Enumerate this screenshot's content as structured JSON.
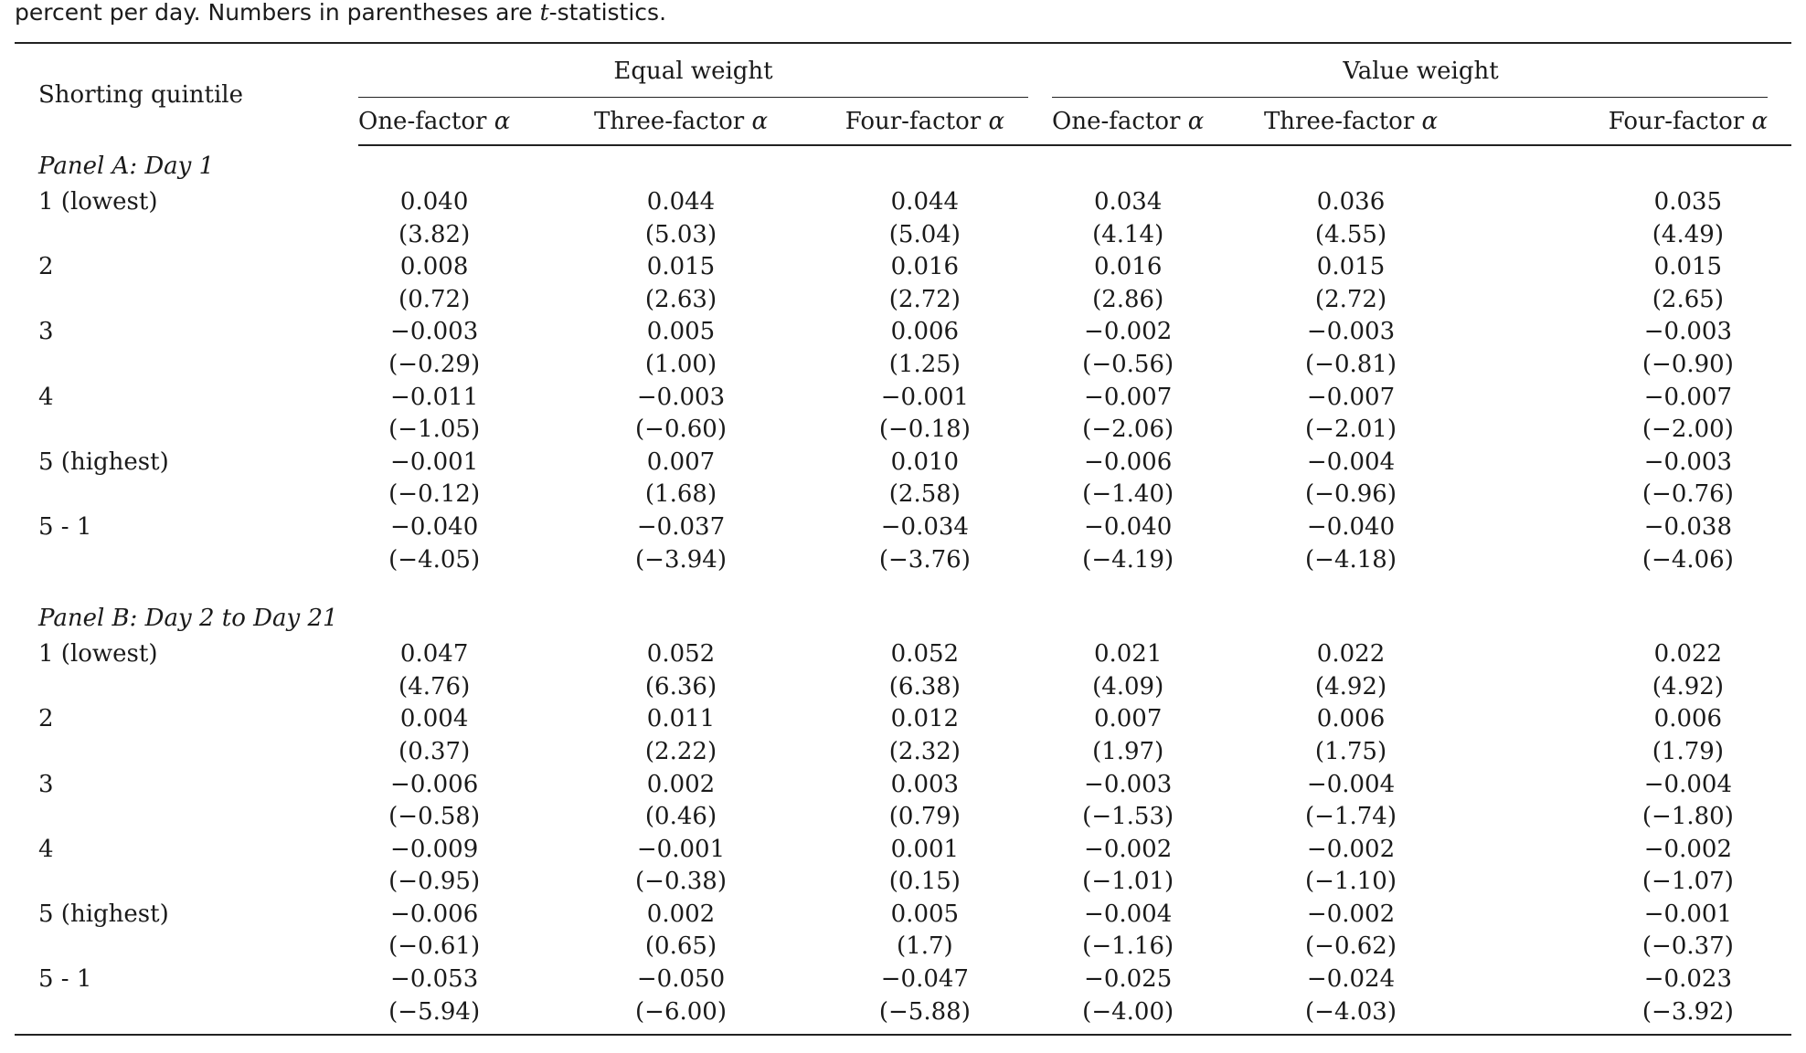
{
  "caption": {
    "text_before": "percent per day. Numbers in parentheses are ",
    "italic": "t",
    "text_after": "-statistics."
  },
  "header": {
    "row_label": "Shorting quintile",
    "groups": [
      "Equal weight",
      "Value weight"
    ],
    "columns": [
      {
        "name": "One-factor",
        "symbol": "α"
      },
      {
        "name": "Three-factor",
        "symbol": "α"
      },
      {
        "name": "Four-factor",
        "symbol": "α"
      },
      {
        "name": "One-factor",
        "symbol": "α"
      },
      {
        "name": "Three-factor",
        "symbol": "α"
      },
      {
        "name": "Four-factor",
        "symbol": "α"
      }
    ]
  },
  "panels": [
    {
      "title": "Panel A: Day 1",
      "rows": [
        {
          "label": "1 (lowest)",
          "values": [
            "0.040",
            "0.044",
            "0.044",
            "0.034",
            "0.036",
            "0.035"
          ],
          "tstats": [
            "(3.82)",
            "(5.03)",
            "(5.04)",
            "(4.14)",
            "(4.55)",
            "(4.49)"
          ]
        },
        {
          "label": "2",
          "values": [
            "0.008",
            "0.015",
            "0.016",
            "0.016",
            "0.015",
            "0.015"
          ],
          "tstats": [
            "(0.72)",
            "(2.63)",
            "(2.72)",
            "(2.86)",
            "(2.72)",
            "(2.65)"
          ]
        },
        {
          "label": "3",
          "values": [
            "−0.003",
            "0.005",
            "0.006",
            "−0.002",
            "−0.003",
            "−0.003"
          ],
          "tstats": [
            "(−0.29)",
            "(1.00)",
            "(1.25)",
            "(−0.56)",
            "(−0.81)",
            "(−0.90)"
          ]
        },
        {
          "label": "4",
          "values": [
            "−0.011",
            "−0.003",
            "−0.001",
            "−0.007",
            "−0.007",
            "−0.007"
          ],
          "tstats": [
            "(−1.05)",
            "(−0.60)",
            "(−0.18)",
            "(−2.06)",
            "(−2.01)",
            "(−2.00)"
          ]
        },
        {
          "label": "5 (highest)",
          "values": [
            "−0.001",
            "0.007",
            "0.010",
            "−0.006",
            "−0.004",
            "−0.003"
          ],
          "tstats": [
            "(−0.12)",
            "(1.68)",
            "(2.58)",
            "(−1.40)",
            "(−0.96)",
            "(−0.76)"
          ]
        },
        {
          "label": "5 - 1",
          "values": [
            "−0.040",
            "−0.037",
            "−0.034",
            "−0.040",
            "−0.040",
            "−0.038"
          ],
          "tstats": [
            "(−4.05)",
            "(−3.94)",
            "(−3.76)",
            "(−4.19)",
            "(−4.18)",
            "(−4.06)"
          ]
        }
      ]
    },
    {
      "title": "Panel B: Day 2 to Day 21",
      "rows": [
        {
          "label": "1 (lowest)",
          "values": [
            "0.047",
            "0.052",
            "0.052",
            "0.021",
            "0.022",
            "0.022"
          ],
          "tstats": [
            "(4.76)",
            "(6.36)",
            "(6.38)",
            "(4.09)",
            "(4.92)",
            "(4.92)"
          ]
        },
        {
          "label": "2",
          "values": [
            "0.004",
            "0.011",
            "0.012",
            "0.007",
            "0.006",
            "0.006"
          ],
          "tstats": [
            "(0.37)",
            "(2.22)",
            "(2.32)",
            "(1.97)",
            "(1.75)",
            "(1.79)"
          ]
        },
        {
          "label": "3",
          "values": [
            "−0.006",
            "0.002",
            "0.003",
            "−0.003",
            "−0.004",
            "−0.004"
          ],
          "tstats": [
            "(−0.58)",
            "(0.46)",
            "(0.79)",
            "(−1.53)",
            "(−1.74)",
            "(−1.80)"
          ]
        },
        {
          "label": "4",
          "values": [
            "−0.009",
            "−0.001",
            "0.001",
            "−0.002",
            "−0.002",
            "−0.002"
          ],
          "tstats": [
            "(−0.95)",
            "(−0.38)",
            "(0.15)",
            "(−1.01)",
            "(−1.10)",
            "(−1.07)"
          ]
        },
        {
          "label": "5 (highest)",
          "values": [
            "−0.006",
            "0.002",
            "0.005",
            "−0.004",
            "−0.002",
            "−0.001"
          ],
          "tstats": [
            "(−0.61)",
            "(0.65)",
            "(1.7)",
            "(−1.16)",
            "(−0.62)",
            "(−0.37)"
          ]
        },
        {
          "label": "5 - 1",
          "values": [
            "−0.053",
            "−0.050",
            "−0.047",
            "−0.025",
            "−0.024",
            "−0.023"
          ],
          "tstats": [
            "(−5.94)",
            "(−6.00)",
            "(−5.88)",
            "(−4.00)",
            "(−4.03)",
            "(−3.92)"
          ]
        }
      ]
    }
  ]
}
